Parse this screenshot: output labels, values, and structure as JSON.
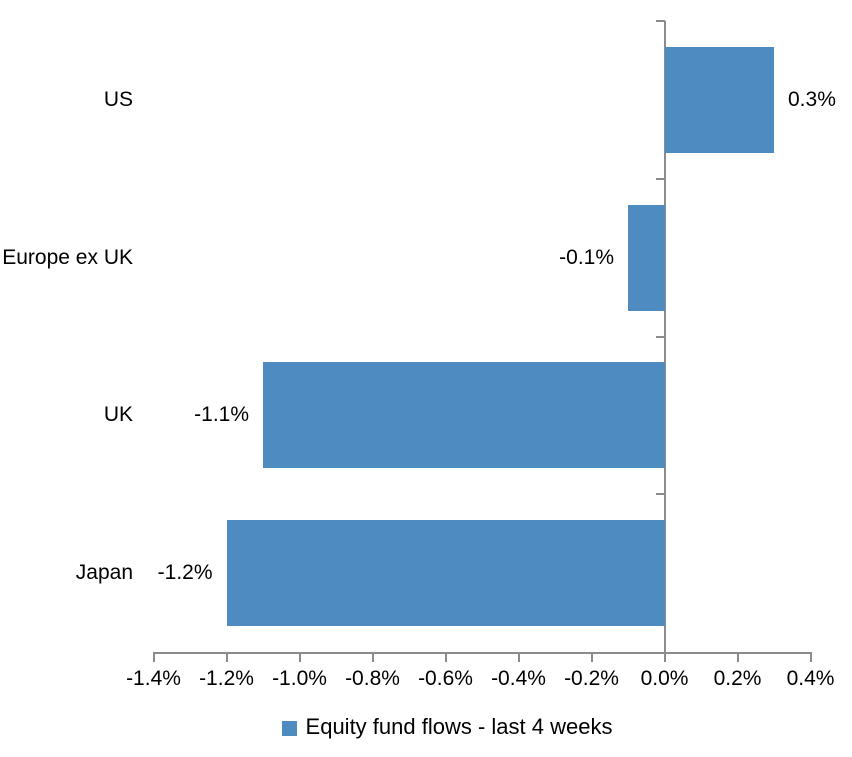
{
  "chart_data": {
    "type": "bar",
    "orientation": "horizontal",
    "title": "",
    "categories": [
      "US",
      "Europe ex UK",
      "UK",
      "Japan"
    ],
    "values": [
      0.3,
      -0.1,
      -1.1,
      -1.2
    ],
    "data_labels": [
      "0.3%",
      "-0.1%",
      "-1.1%",
      "-1.2%"
    ],
    "series": [
      {
        "name": "Equity fund flows - last 4 weeks",
        "values": [
          0.3,
          -0.1,
          -1.1,
          -1.2
        ]
      }
    ],
    "xlabel": "",
    "ylabel": "",
    "xlim": [
      -1.4,
      0.4
    ],
    "x_tick_step": 0.2,
    "x_tick_labels": [
      "-1.4%",
      "-1.2%",
      "-1.0%",
      "-0.8%",
      "-0.6%",
      "-0.4%",
      "-0.2%",
      "0.0%",
      "0.2%",
      "0.4%"
    ],
    "grid": false,
    "legend": {
      "position": "bottom",
      "label": "Equity fund flows - last 4 weeks"
    },
    "colors": {
      "bar": "#4E8BC1",
      "axis": "#8C8C8C",
      "text": "#000000",
      "background": "#FFFFFF"
    }
  }
}
